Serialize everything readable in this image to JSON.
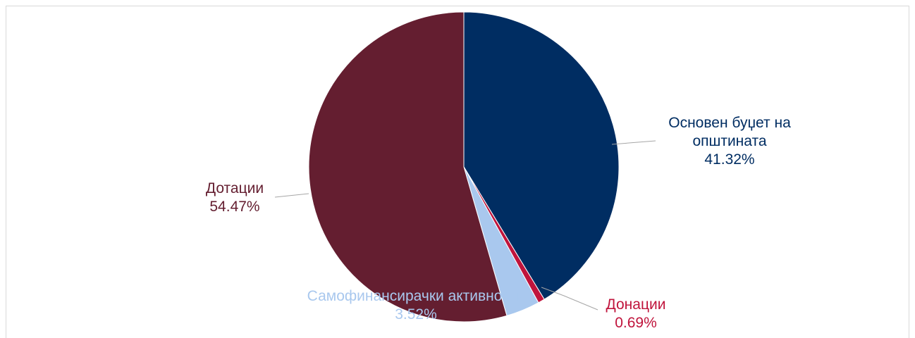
{
  "chart_data": {
    "type": "pie",
    "title": "",
    "start_angle_deg": 0,
    "direction": "clockwise",
    "slices": [
      {
        "label": "Основен буџет на општината",
        "label_lines": [
          "Основен буџет на",
          "општината"
        ],
        "percent_text": "41.32%",
        "value": 41.32,
        "color": "#002d62"
      },
      {
        "label": "Донации",
        "label_lines": [
          "Донации"
        ],
        "percent_text": "0.69%",
        "value": 0.69,
        "color": "#c0143c"
      },
      {
        "label": "Самофинансирачки активности",
        "label_lines": [
          "Самофинансирачки активности"
        ],
        "percent_text": "3.52%",
        "value": 3.52,
        "color": "#a9c8ee"
      },
      {
        "label": "Дотации",
        "label_lines": [
          "Дотации"
        ],
        "percent_text": "54.47%",
        "value": 54.47,
        "color": "#641e30"
      }
    ],
    "leader_line_color": "#a6a6a6",
    "legend": "none"
  }
}
